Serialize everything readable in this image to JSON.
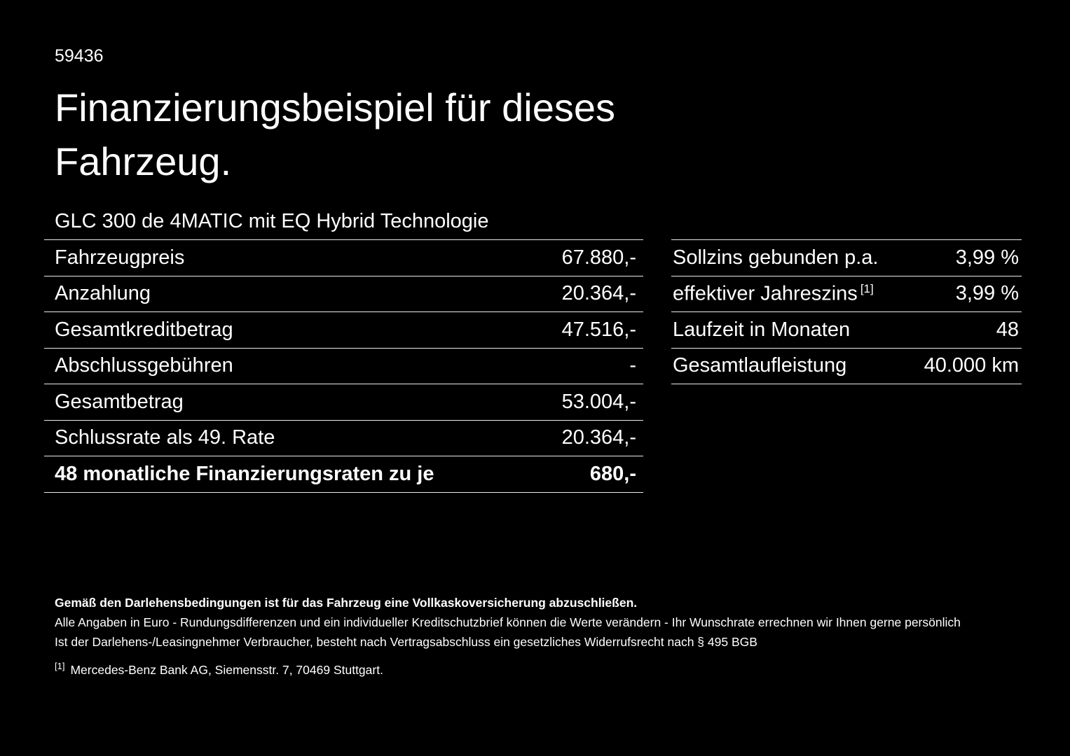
{
  "page": {
    "doc_number": "59436",
    "title_line1": "Finanzierungsbeispiel für dieses",
    "title_line2": "Fahrzeug.",
    "subtitle": "GLC 300 de 4MATIC mit EQ Hybrid Technologie"
  },
  "tables": {
    "left": {
      "rows": [
        {
          "label": "Fahrzeugpreis",
          "value": "67.880,-"
        },
        {
          "label": "Anzahlung",
          "value": "20.364,-"
        },
        {
          "label": "Gesamtkreditbetrag",
          "value": "47.516,-"
        },
        {
          "label": "Abschlussgebühren",
          "value": "-"
        },
        {
          "label": "Gesamtbetrag",
          "value": "53.004,-"
        },
        {
          "label": "Schlussrate als 49. Rate",
          "value": "20.364,-"
        },
        {
          "label": "48 monatliche Finanzierungsraten zu je",
          "value": "680,-"
        }
      ]
    },
    "right": {
      "rows": [
        {
          "label": "Sollzins gebunden p.a.",
          "value": "3,99 %"
        },
        {
          "label": "effektiver Jahreszins",
          "sup": "[1]",
          "value": "3,99 %"
        },
        {
          "label": "Laufzeit in Monaten",
          "value": "48"
        },
        {
          "label": "Gesamtlaufleistung",
          "value": "40.000 km"
        }
      ]
    }
  },
  "footer": {
    "insurance_note": "Gemäß den Darlehensbedingungen ist für das Fahrzeug eine Vollkaskoversicherung abzuschließen.",
    "disclaimer_note": "Alle Angaben in Euro - Rundungsdifferenzen und ein individueller Kreditschutzbrief können die Werte verändern - Ihr Wunschrate errechnen wir Ihnen gerne persönlich",
    "withdrawal_note": "Ist der Darlehens-/Leasingnehmer Verbraucher, besteht nach Vertragsabschluss ein gesetzliches Widerrufsrecht nach § 495 BGB",
    "footnote_marker": "[1]",
    "footnote_text": "Mercedes-Benz Bank AG, Siemensstr. 7, 70469 Stuttgart."
  },
  "colors": {
    "background": "#000000",
    "text": "#ffffff",
    "divider": "#ebebeb"
  }
}
